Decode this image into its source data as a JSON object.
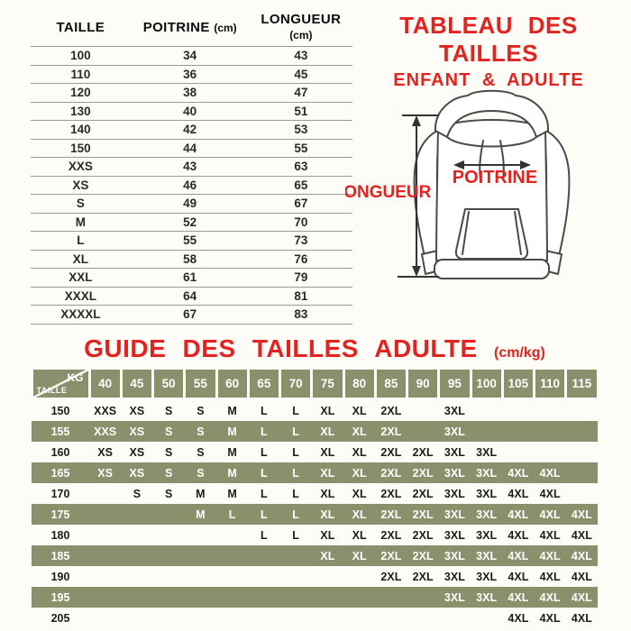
{
  "colors": {
    "accent_red": "#e32320",
    "olive": "#88906c",
    "background": "#fdfcf7"
  },
  "title": {
    "line1": "TABLEAU DES TAILLES",
    "line2": "ENFANT & ADULTE"
  },
  "size_table": {
    "headers": [
      {
        "label": "TAILLE",
        "unit": ""
      },
      {
        "label": "POITRINE",
        "unit": "(cm)"
      },
      {
        "label": "LONGUEUR",
        "unit": "(cm)"
      }
    ],
    "rows": [
      [
        "100",
        "34",
        "43"
      ],
      [
        "110",
        "36",
        "45"
      ],
      [
        "120",
        "38",
        "47"
      ],
      [
        "130",
        "40",
        "51"
      ],
      [
        "140",
        "42",
        "53"
      ],
      [
        "150",
        "44",
        "55"
      ],
      [
        "XXS",
        "43",
        "63"
      ],
      [
        "XS",
        "46",
        "65"
      ],
      [
        "S",
        "49",
        "67"
      ],
      [
        "M",
        "52",
        "70"
      ],
      [
        "L",
        "55",
        "73"
      ],
      [
        "XL",
        "58",
        "76"
      ],
      [
        "XXL",
        "61",
        "79"
      ],
      [
        "XXXL",
        "64",
        "81"
      ],
      [
        "XXXXL",
        "67",
        "83"
      ]
    ]
  },
  "diagram": {
    "length_label": "LONGUEUR",
    "chest_label": "POITRINE"
  },
  "guide": {
    "title": "GUIDE DES TAILLES ADULTE",
    "unit": "(cm/kg)",
    "corner": {
      "top": "KG",
      "bottom": "TAILLE"
    },
    "weights": [
      "40",
      "45",
      "50",
      "55",
      "60",
      "65",
      "70",
      "75",
      "80",
      "85",
      "90",
      "95",
      "100",
      "105",
      "110",
      "115"
    ],
    "rows": [
      {
        "height": "150",
        "cells": [
          "XXS",
          "XS",
          "S",
          "S",
          "M",
          "L",
          "L",
          "XL",
          "XL",
          "2XL",
          "",
          "3XL",
          "",
          "",
          "",
          ""
        ]
      },
      {
        "height": "155",
        "cells": [
          "XXS",
          "XS",
          "S",
          "S",
          "M",
          "L",
          "L",
          "XL",
          "XL",
          "2XL",
          "",
          "3XL",
          "",
          "",
          "",
          ""
        ]
      },
      {
        "height": "160",
        "cells": [
          "XS",
          "XS",
          "S",
          "S",
          "M",
          "L",
          "L",
          "XL",
          "XL",
          "2XL",
          "2XL",
          "3XL",
          "3XL",
          "",
          "",
          ""
        ]
      },
      {
        "height": "165",
        "cells": [
          "XS",
          "XS",
          "S",
          "S",
          "M",
          "L",
          "L",
          "XL",
          "XL",
          "2XL",
          "2XL",
          "3XL",
          "3XL",
          "4XL",
          "4XL",
          ""
        ]
      },
      {
        "height": "170",
        "cells": [
          "",
          "S",
          "S",
          "M",
          "M",
          "L",
          "L",
          "XL",
          "XL",
          "2XL",
          "2XL",
          "3XL",
          "3XL",
          "4XL",
          "4XL",
          ""
        ]
      },
      {
        "height": "175",
        "cells": [
          "",
          "",
          "",
          "M",
          "L",
          "L",
          "L",
          "XL",
          "XL",
          "2XL",
          "2XL",
          "3XL",
          "3XL",
          "4XL",
          "4XL",
          "4XL"
        ]
      },
      {
        "height": "180",
        "cells": [
          "",
          "",
          "",
          "",
          "",
          "L",
          "L",
          "XL",
          "XL",
          "2XL",
          "2XL",
          "3XL",
          "3XL",
          "4XL",
          "4XL",
          "4XL"
        ]
      },
      {
        "height": "185",
        "cells": [
          "",
          "",
          "",
          "",
          "",
          "",
          "",
          "XL",
          "XL",
          "2XL",
          "2XL",
          "3XL",
          "3XL",
          "4XL",
          "4XL",
          "4XL"
        ]
      },
      {
        "height": "190",
        "cells": [
          "",
          "",
          "",
          "",
          "",
          "",
          "",
          "",
          "",
          "2XL",
          "2XL",
          "3XL",
          "3XL",
          "4XL",
          "4XL",
          "4XL"
        ]
      },
      {
        "height": "195",
        "cells": [
          "",
          "",
          "",
          "",
          "",
          "",
          "",
          "",
          "",
          "",
          "",
          "3XL",
          "3XL",
          "4XL",
          "4XL",
          "4XL"
        ]
      },
      {
        "height": "205",
        "cells": [
          "",
          "",
          "",
          "",
          "",
          "",
          "",
          "",
          "",
          "",
          "",
          "",
          "",
          "4XL",
          "4XL",
          "4XL"
        ]
      }
    ]
  }
}
